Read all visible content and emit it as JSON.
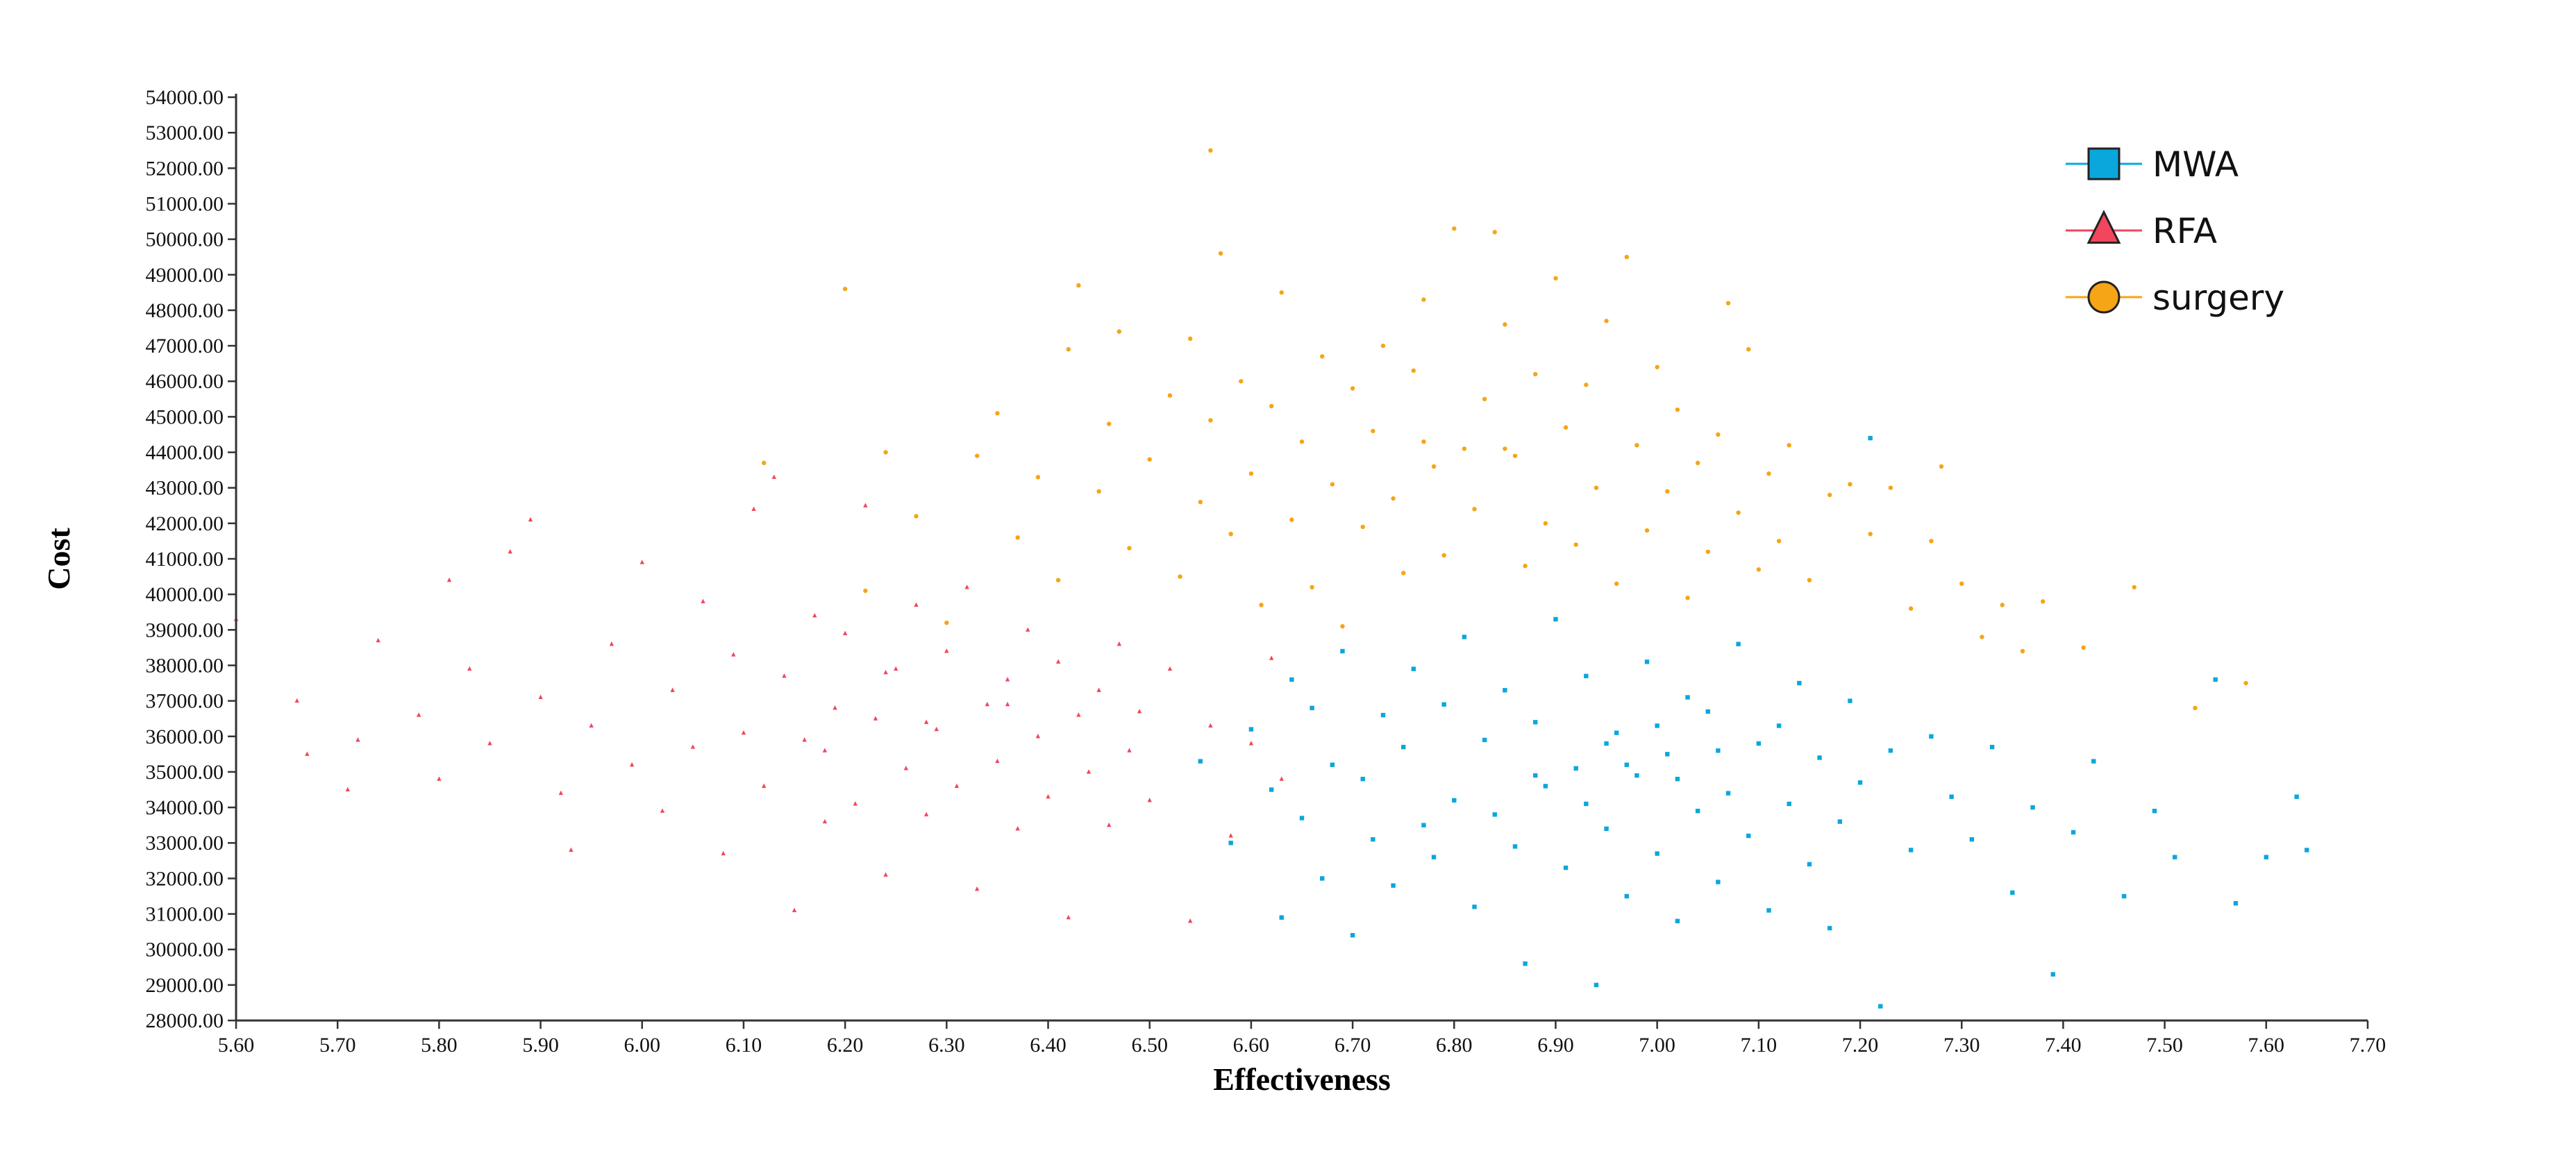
{
  "chart_data": {
    "type": "scatter",
    "title": "",
    "xlabel": "Effectiveness",
    "ylabel": "Cost",
    "xlim": [
      5.6,
      7.7
    ],
    "ylim": [
      28000,
      54000
    ],
    "x_ticks": [
      "5.60",
      "5.70",
      "5.80",
      "5.90",
      "6.00",
      "6.10",
      "6.20",
      "6.30",
      "6.40",
      "6.50",
      "6.60",
      "6.70",
      "6.80",
      "6.90",
      "7.00",
      "7.10",
      "7.20",
      "7.30",
      "7.40",
      "7.50",
      "7.60",
      "7.70"
    ],
    "y_ticks": [
      "28000.00",
      "29000.00",
      "30000.00",
      "31000.00",
      "32000.00",
      "33000.00",
      "34000.00",
      "35000.00",
      "36000.00",
      "37000.00",
      "38000.00",
      "39000.00",
      "40000.00",
      "41000.00",
      "42000.00",
      "43000.00",
      "44000.00",
      "45000.00",
      "46000.00",
      "47000.00",
      "48000.00",
      "49000.00",
      "50000.00",
      "51000.00",
      "52000.00",
      "53000.00",
      "54000.00"
    ],
    "grid": false,
    "legend_position": "top-right",
    "series": [
      {
        "name": "MWA",
        "marker": "square",
        "color": "#0aa7dc",
        "points": [
          [
            6.55,
            35300
          ],
          [
            6.58,
            33000
          ],
          [
            6.6,
            36200
          ],
          [
            6.62,
            34500
          ],
          [
            6.63,
            30900
          ],
          [
            6.64,
            37600
          ],
          [
            6.65,
            33700
          ],
          [
            6.66,
            36800
          ],
          [
            6.67,
            32000
          ],
          [
            6.68,
            35200
          ],
          [
            6.69,
            38400
          ],
          [
            6.7,
            30400
          ],
          [
            6.71,
            34800
          ],
          [
            6.72,
            33100
          ],
          [
            6.73,
            36600
          ],
          [
            6.74,
            31800
          ],
          [
            6.75,
            35700
          ],
          [
            6.76,
            37900
          ],
          [
            6.77,
            33500
          ],
          [
            6.78,
            32600
          ],
          [
            6.79,
            36900
          ],
          [
            6.8,
            34200
          ],
          [
            6.81,
            38800
          ],
          [
            6.82,
            31200
          ],
          [
            6.83,
            35900
          ],
          [
            6.84,
            33800
          ],
          [
            6.85,
            37300
          ],
          [
            6.86,
            32900
          ],
          [
            6.87,
            29600
          ],
          [
            6.88,
            36400
          ],
          [
            6.89,
            34600
          ],
          [
            6.9,
            39300
          ],
          [
            6.91,
            32300
          ],
          [
            6.92,
            35100
          ],
          [
            6.93,
            37700
          ],
          [
            6.94,
            29000
          ],
          [
            6.95,
            33400
          ],
          [
            6.96,
            36100
          ],
          [
            6.97,
            31500
          ],
          [
            6.98,
            34900
          ],
          [
            6.99,
            38100
          ],
          [
            7.0,
            32700
          ],
          [
            7.01,
            35500
          ],
          [
            7.02,
            30800
          ],
          [
            7.03,
            37100
          ],
          [
            7.04,
            33900
          ],
          [
            7.05,
            36700
          ],
          [
            7.06,
            31900
          ],
          [
            7.07,
            34400
          ],
          [
            7.08,
            38600
          ],
          [
            7.09,
            33200
          ],
          [
            7.1,
            35800
          ],
          [
            7.11,
            31100
          ],
          [
            7.12,
            36300
          ],
          [
            7.13,
            34100
          ],
          [
            7.14,
            37500
          ],
          [
            7.15,
            32400
          ],
          [
            7.16,
            35400
          ],
          [
            7.17,
            30600
          ],
          [
            7.18,
            33600
          ],
          [
            7.19,
            37000
          ],
          [
            7.2,
            34700
          ],
          [
            7.21,
            44400
          ],
          [
            7.22,
            28400
          ],
          [
            7.23,
            35600
          ],
          [
            7.25,
            32800
          ],
          [
            7.27,
            36000
          ],
          [
            7.29,
            34300
          ],
          [
            7.31,
            33100
          ],
          [
            7.33,
            35700
          ],
          [
            7.35,
            31600
          ],
          [
            7.37,
            34000
          ],
          [
            7.39,
            29300
          ],
          [
            7.41,
            33300
          ],
          [
            7.43,
            35300
          ],
          [
            7.46,
            31500
          ],
          [
            7.49,
            33900
          ],
          [
            7.51,
            32600
          ],
          [
            7.55,
            37600
          ],
          [
            7.57,
            31300
          ],
          [
            7.6,
            32600
          ],
          [
            7.63,
            34300
          ],
          [
            7.64,
            32800
          ],
          [
            6.97,
            35200
          ],
          [
            7.02,
            34800
          ],
          [
            6.93,
            34100
          ],
          [
            7.06,
            35600
          ],
          [
            6.88,
            34900
          ],
          [
            7.0,
            36300
          ],
          [
            6.95,
            35800
          ]
        ]
      },
      {
        "name": "RFA",
        "marker": "triangle",
        "color": "#f2465f",
        "points": [
          [
            5.6,
            39300
          ],
          [
            5.66,
            37000
          ],
          [
            5.67,
            35500
          ],
          [
            5.71,
            34500
          ],
          [
            5.72,
            35900
          ],
          [
            5.74,
            38700
          ],
          [
            5.78,
            36600
          ],
          [
            5.8,
            34800
          ],
          [
            5.81,
            40400
          ],
          [
            5.83,
            37900
          ],
          [
            5.85,
            35800
          ],
          [
            5.87,
            41200
          ],
          [
            5.89,
            42100
          ],
          [
            5.9,
            37100
          ],
          [
            5.92,
            34400
          ],
          [
            5.93,
            32800
          ],
          [
            5.95,
            36300
          ],
          [
            5.97,
            38600
          ],
          [
            5.99,
            35200
          ],
          [
            6.0,
            40900
          ],
          [
            6.02,
            33900
          ],
          [
            6.03,
            37300
          ],
          [
            6.05,
            35700
          ],
          [
            6.06,
            39800
          ],
          [
            6.08,
            32700
          ],
          [
            6.09,
            38300
          ],
          [
            6.1,
            36100
          ],
          [
            6.11,
            42400
          ],
          [
            6.12,
            34600
          ],
          [
            6.13,
            43300
          ],
          [
            6.14,
            37700
          ],
          [
            6.15,
            31100
          ],
          [
            6.16,
            35900
          ],
          [
            6.17,
            39400
          ],
          [
            6.18,
            33600
          ],
          [
            6.19,
            36800
          ],
          [
            6.2,
            38900
          ],
          [
            6.21,
            34100
          ],
          [
            6.22,
            42500
          ],
          [
            6.23,
            36500
          ],
          [
            6.24,
            32100
          ],
          [
            6.25,
            37900
          ],
          [
            6.26,
            35100
          ],
          [
            6.27,
            39700
          ],
          [
            6.28,
            33800
          ],
          [
            6.29,
            36200
          ],
          [
            6.3,
            38400
          ],
          [
            6.31,
            34600
          ],
          [
            6.32,
            40200
          ],
          [
            6.33,
            31700
          ],
          [
            6.34,
            36900
          ],
          [
            6.35,
            35300
          ],
          [
            6.36,
            37600
          ],
          [
            6.37,
            33400
          ],
          [
            6.38,
            39000
          ],
          [
            6.39,
            36000
          ],
          [
            6.4,
            34300
          ],
          [
            6.41,
            38100
          ],
          [
            6.42,
            30900
          ],
          [
            6.43,
            36600
          ],
          [
            6.44,
            35000
          ],
          [
            6.45,
            37300
          ],
          [
            6.46,
            33500
          ],
          [
            6.47,
            38600
          ],
          [
            6.48,
            35600
          ],
          [
            6.49,
            36700
          ],
          [
            6.5,
            34200
          ],
          [
            6.52,
            37900
          ],
          [
            6.54,
            30800
          ],
          [
            6.56,
            36300
          ],
          [
            6.58,
            33200
          ],
          [
            6.6,
            35800
          ],
          [
            6.62,
            38200
          ],
          [
            6.63,
            34800
          ],
          [
            6.24,
            37800
          ],
          [
            6.28,
            36400
          ],
          [
            6.36,
            36900
          ],
          [
            6.18,
            35600
          ]
        ]
      },
      {
        "name": "surgery",
        "marker": "circle",
        "color": "#f5a516",
        "points": [
          [
            6.12,
            43700
          ],
          [
            6.2,
            48600
          ],
          [
            6.22,
            40100
          ],
          [
            6.24,
            44000
          ],
          [
            6.27,
            42200
          ],
          [
            6.3,
            39200
          ],
          [
            6.33,
            43900
          ],
          [
            6.35,
            45100
          ],
          [
            6.37,
            41600
          ],
          [
            6.39,
            43300
          ],
          [
            6.41,
            40400
          ],
          [
            6.42,
            46900
          ],
          [
            6.43,
            48700
          ],
          [
            6.45,
            42900
          ],
          [
            6.46,
            44800
          ],
          [
            6.47,
            47400
          ],
          [
            6.48,
            41300
          ],
          [
            6.5,
            43800
          ],
          [
            6.52,
            45600
          ],
          [
            6.53,
            40500
          ],
          [
            6.54,
            47200
          ],
          [
            6.55,
            42600
          ],
          [
            6.56,
            44900
          ],
          [
            6.57,
            49600
          ],
          [
            6.58,
            41700
          ],
          [
            6.59,
            46000
          ],
          [
            6.6,
            43400
          ],
          [
            6.61,
            39700
          ],
          [
            6.62,
            45300
          ],
          [
            6.63,
            48500
          ],
          [
            6.64,
            42100
          ],
          [
            6.65,
            44300
          ],
          [
            6.66,
            40200
          ],
          [
            6.67,
            46700
          ],
          [
            6.68,
            43100
          ],
          [
            6.69,
            39100
          ],
          [
            6.7,
            45800
          ],
          [
            6.71,
            41900
          ],
          [
            6.72,
            44600
          ],
          [
            6.73,
            47000
          ],
          [
            6.74,
            42700
          ],
          [
            6.75,
            40600
          ],
          [
            6.76,
            46300
          ],
          [
            6.77,
            48300
          ],
          [
            6.78,
            43600
          ],
          [
            6.79,
            41100
          ],
          [
            6.8,
            50300
          ],
          [
            6.81,
            44100
          ],
          [
            6.82,
            42400
          ],
          [
            6.83,
            45500
          ],
          [
            6.84,
            50200
          ],
          [
            6.85,
            47600
          ],
          [
            6.86,
            43900
          ],
          [
            6.87,
            40800
          ],
          [
            6.88,
            46200
          ],
          [
            6.89,
            42000
          ],
          [
            6.9,
            48900
          ],
          [
            6.91,
            44700
          ],
          [
            6.92,
            41400
          ],
          [
            6.93,
            45900
          ],
          [
            6.94,
            43000
          ],
          [
            6.95,
            47700
          ],
          [
            6.96,
            40300
          ],
          [
            6.97,
            49500
          ],
          [
            6.98,
            44200
          ],
          [
            6.99,
            41800
          ],
          [
            7.0,
            46400
          ],
          [
            7.01,
            42900
          ],
          [
            7.02,
            45200
          ],
          [
            7.03,
            39900
          ],
          [
            7.04,
            43700
          ],
          [
            7.05,
            41200
          ],
          [
            7.06,
            44500
          ],
          [
            7.07,
            48200
          ],
          [
            7.08,
            42300
          ],
          [
            7.09,
            46900
          ],
          [
            7.1,
            40700
          ],
          [
            7.11,
            43400
          ],
          [
            7.12,
            41500
          ],
          [
            7.13,
            44200
          ],
          [
            7.15,
            40400
          ],
          [
            7.17,
            42800
          ],
          [
            7.19,
            43100
          ],
          [
            7.21,
            41700
          ],
          [
            7.23,
            43000
          ],
          [
            7.25,
            39600
          ],
          [
            7.27,
            41500
          ],
          [
            7.28,
            43600
          ],
          [
            7.3,
            40300
          ],
          [
            7.32,
            38800
          ],
          [
            7.34,
            39700
          ],
          [
            7.36,
            38400
          ],
          [
            7.38,
            39800
          ],
          [
            7.42,
            38500
          ],
          [
            7.47,
            40200
          ],
          [
            7.53,
            36800
          ],
          [
            7.58,
            37500
          ],
          [
            6.56,
            52500
          ],
          [
            6.77,
            44300
          ],
          [
            6.85,
            44100
          ]
        ]
      }
    ]
  }
}
